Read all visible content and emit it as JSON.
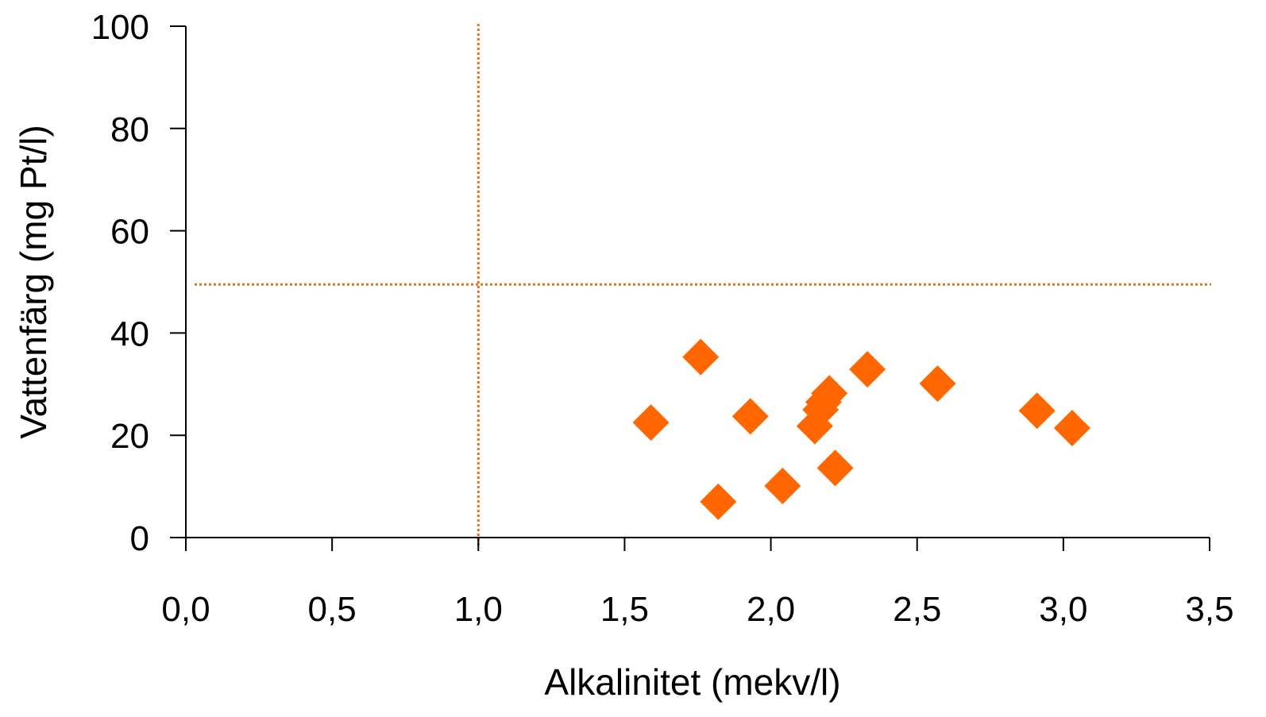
{
  "colors": {
    "marker": "#FF6600",
    "reference_line": "#E8731E",
    "axis": "#000000"
  },
  "chart_data": {
    "type": "scatter",
    "xlabel": "Alkalinitet (mekv/l)",
    "ylabel": "Vattenfärg (mg Pt/l)",
    "xlim": [
      0,
      3.5
    ],
    "ylim": [
      0,
      100
    ],
    "x_ticks": [
      0,
      0.5,
      1.0,
      1.5,
      2.0,
      2.5,
      3.0,
      3.5
    ],
    "x_tick_labels": [
      "0,0",
      "0,5",
      "1,0",
      "1,5",
      "2,0",
      "2,5",
      "3,0",
      "3,5"
    ],
    "y_ticks": [
      0,
      20,
      40,
      60,
      80,
      100
    ],
    "y_tick_labels": [
      "0",
      "20",
      "40",
      "60",
      "80",
      "100"
    ],
    "grid": false,
    "marker": "diamond",
    "reference_lines": [
      {
        "orientation": "vertical",
        "value": 1.0,
        "style": "dotted"
      },
      {
        "orientation": "horizontal",
        "value": 49.5,
        "style": "dotted"
      }
    ],
    "series": [
      {
        "points": [
          {
            "x": 1.59,
            "y": 22.5
          },
          {
            "x": 1.76,
            "y": 35.3
          },
          {
            "x": 1.82,
            "y": 7.0
          },
          {
            "x": 1.93,
            "y": 23.7
          },
          {
            "x": 2.04,
            "y": 10.1
          },
          {
            "x": 2.15,
            "y": 21.8
          },
          {
            "x": 2.17,
            "y": 25.0
          },
          {
            "x": 2.18,
            "y": 26.5
          },
          {
            "x": 2.2,
            "y": 28.2
          },
          {
            "x": 2.22,
            "y": 13.6
          },
          {
            "x": 2.33,
            "y": 32.9
          },
          {
            "x": 2.57,
            "y": 30.1
          },
          {
            "x": 2.91,
            "y": 24.8
          },
          {
            "x": 3.03,
            "y": 21.4
          }
        ]
      }
    ]
  }
}
